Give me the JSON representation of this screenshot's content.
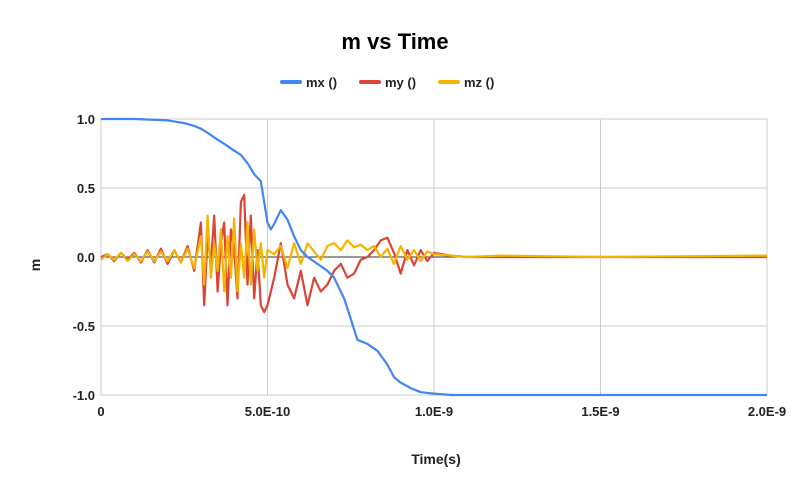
{
  "chart_data": {
    "type": "line",
    "title": "m vs Time",
    "xlabel": "Time(s)",
    "ylabel": "m",
    "xlim": [
      0,
      2e-09
    ],
    "ylim": [
      -1.0,
      1.0
    ],
    "x_ticks": [
      0,
      5e-10,
      1e-09,
      1.5e-09,
      2e-09
    ],
    "x_tick_labels": [
      "0",
      "5.0E-10",
      "1.0E-9",
      "1.5E-9",
      "2.0E-9"
    ],
    "y_ticks": [
      1.0,
      0.5,
      0.0,
      -0.5,
      -1.0
    ],
    "y_tick_labels": [
      "1.0",
      "0.5",
      "0.0",
      "-0.5",
      "-1.0"
    ],
    "grid": true,
    "legend_position": "top",
    "series": [
      {
        "name": "mx ()",
        "color": "#4285F4",
        "x": [
          0,
          1e-10,
          2e-10,
          2.5e-10,
          2.8e-10,
          3e-10,
          3.2e-10,
          3.5e-10,
          3.7e-10,
          4e-10,
          4.2e-10,
          4.4e-10,
          4.6e-10,
          4.8e-10,
          5e-10,
          5.1e-10,
          5.2e-10,
          5.4e-10,
          5.6e-10,
          5.8e-10,
          6e-10,
          6.2e-10,
          6.5e-10,
          6.8e-10,
          7e-10,
          7.3e-10,
          7.5e-10,
          7.7e-10,
          8e-10,
          8.3e-10,
          8.6e-10,
          8.8e-10,
          9e-10,
          9.3e-10,
          9.6e-10,
          1e-09,
          1.05e-09,
          1.1e-09,
          1.2e-09,
          1.5e-09,
          2e-09
        ],
        "y": [
          1.0,
          1.0,
          0.99,
          0.97,
          0.95,
          0.93,
          0.9,
          0.85,
          0.82,
          0.77,
          0.74,
          0.68,
          0.6,
          0.55,
          0.25,
          0.2,
          0.24,
          0.34,
          0.27,
          0.15,
          0.05,
          0.0,
          -0.05,
          -0.1,
          -0.15,
          -0.3,
          -0.45,
          -0.6,
          -0.63,
          -0.68,
          -0.78,
          -0.87,
          -0.91,
          -0.95,
          -0.98,
          -0.99,
          -1.0,
          -1.0,
          -1.0,
          -1.0,
          -1.0
        ]
      },
      {
        "name": "my ()",
        "color": "#DB4437",
        "x": [
          0,
          2e-11,
          4e-11,
          6e-11,
          8e-11,
          1e-10,
          1.2e-10,
          1.4e-10,
          1.6e-10,
          1.8e-10,
          2e-10,
          2.2e-10,
          2.4e-10,
          2.6e-10,
          2.8e-10,
          3e-10,
          3.1e-10,
          3.2e-10,
          3.3e-10,
          3.4e-10,
          3.5e-10,
          3.6e-10,
          3.7e-10,
          3.8e-10,
          3.9e-10,
          4e-10,
          4.1e-10,
          4.2e-10,
          4.3e-10,
          4.4e-10,
          4.5e-10,
          4.6e-10,
          4.7e-10,
          4.8e-10,
          4.9e-10,
          5e-10,
          5.2e-10,
          5.4e-10,
          5.6e-10,
          5.8e-10,
          6e-10,
          6.2e-10,
          6.4e-10,
          6.6e-10,
          6.8e-10,
          7e-10,
          7.2e-10,
          7.4e-10,
          7.6e-10,
          7.8e-10,
          8e-10,
          8.2e-10,
          8.4e-10,
          8.6e-10,
          8.8e-10,
          9e-10,
          9.2e-10,
          9.4e-10,
          9.6e-10,
          9.8e-10,
          1e-09,
          1.05e-09,
          1.1e-09,
          1.2e-09,
          1.5e-09,
          2e-09
        ],
        "y": [
          0.0,
          0.02,
          -0.03,
          0.03,
          -0.02,
          0.03,
          -0.04,
          0.05,
          -0.04,
          0.06,
          -0.05,
          0.05,
          -0.04,
          0.08,
          -0.1,
          0.25,
          -0.35,
          0.15,
          -0.05,
          0.3,
          -0.25,
          0.1,
          0.25,
          -0.35,
          0.2,
          0.05,
          -0.3,
          0.4,
          0.45,
          -0.2,
          0.3,
          -0.3,
          0.05,
          -0.35,
          -0.4,
          -0.35,
          -0.15,
          0.1,
          -0.2,
          -0.3,
          -0.1,
          -0.35,
          -0.15,
          -0.25,
          -0.2,
          -0.1,
          -0.05,
          -0.15,
          -0.12,
          -0.02,
          0.0,
          0.05,
          0.12,
          0.14,
          0.03,
          -0.12,
          0.05,
          -0.06,
          0.05,
          -0.03,
          0.03,
          0.01,
          0.0,
          0.0,
          0.0,
          0.0
        ]
      },
      {
        "name": "mz ()",
        "color": "#F4B400",
        "x": [
          0,
          2e-11,
          4e-11,
          6e-11,
          8e-11,
          1e-10,
          1.2e-10,
          1.4e-10,
          1.6e-10,
          1.8e-10,
          2e-10,
          2.2e-10,
          2.4e-10,
          2.6e-10,
          2.8e-10,
          3e-10,
          3.1e-10,
          3.2e-10,
          3.3e-10,
          3.4e-10,
          3.5e-10,
          3.6e-10,
          3.7e-10,
          3.8e-10,
          3.9e-10,
          4e-10,
          4.1e-10,
          4.2e-10,
          4.3e-10,
          4.4e-10,
          4.5e-10,
          4.6e-10,
          4.7e-10,
          4.8e-10,
          4.9e-10,
          5e-10,
          5.2e-10,
          5.4e-10,
          5.6e-10,
          5.8e-10,
          6e-10,
          6.2e-10,
          6.4e-10,
          6.6e-10,
          6.8e-10,
          7e-10,
          7.2e-10,
          7.4e-10,
          7.6e-10,
          7.8e-10,
          8e-10,
          8.2e-10,
          8.4e-10,
          8.6e-10,
          8.8e-10,
          9e-10,
          9.2e-10,
          9.4e-10,
          9.6e-10,
          9.8e-10,
          1e-09,
          1.05e-09,
          1.1e-09,
          1.2e-09,
          1.5e-09,
          2e-09
        ],
        "y": [
          -0.02,
          0.02,
          -0.02,
          0.03,
          -0.03,
          0.02,
          -0.03,
          0.04,
          -0.03,
          0.04,
          -0.03,
          0.05,
          -0.04,
          0.06,
          -0.08,
          0.15,
          -0.2,
          0.3,
          -0.15,
          0.1,
          -0.1,
          0.2,
          -0.25,
          0.15,
          -0.15,
          0.28,
          -0.25,
          0.1,
          -0.15,
          0.25,
          -0.2,
          0.2,
          -0.1,
          0.1,
          -0.15,
          0.05,
          0.02,
          0.08,
          -0.08,
          0.1,
          -0.05,
          0.1,
          0.04,
          -0.02,
          0.08,
          0.1,
          0.05,
          0.12,
          0.07,
          0.09,
          0.05,
          0.08,
          0.0,
          0.06,
          -0.05,
          0.08,
          -0.02,
          0.05,
          -0.03,
          0.04,
          0.02,
          0.01,
          0.0,
          0.01,
          0.0,
          0.01
        ]
      }
    ]
  }
}
